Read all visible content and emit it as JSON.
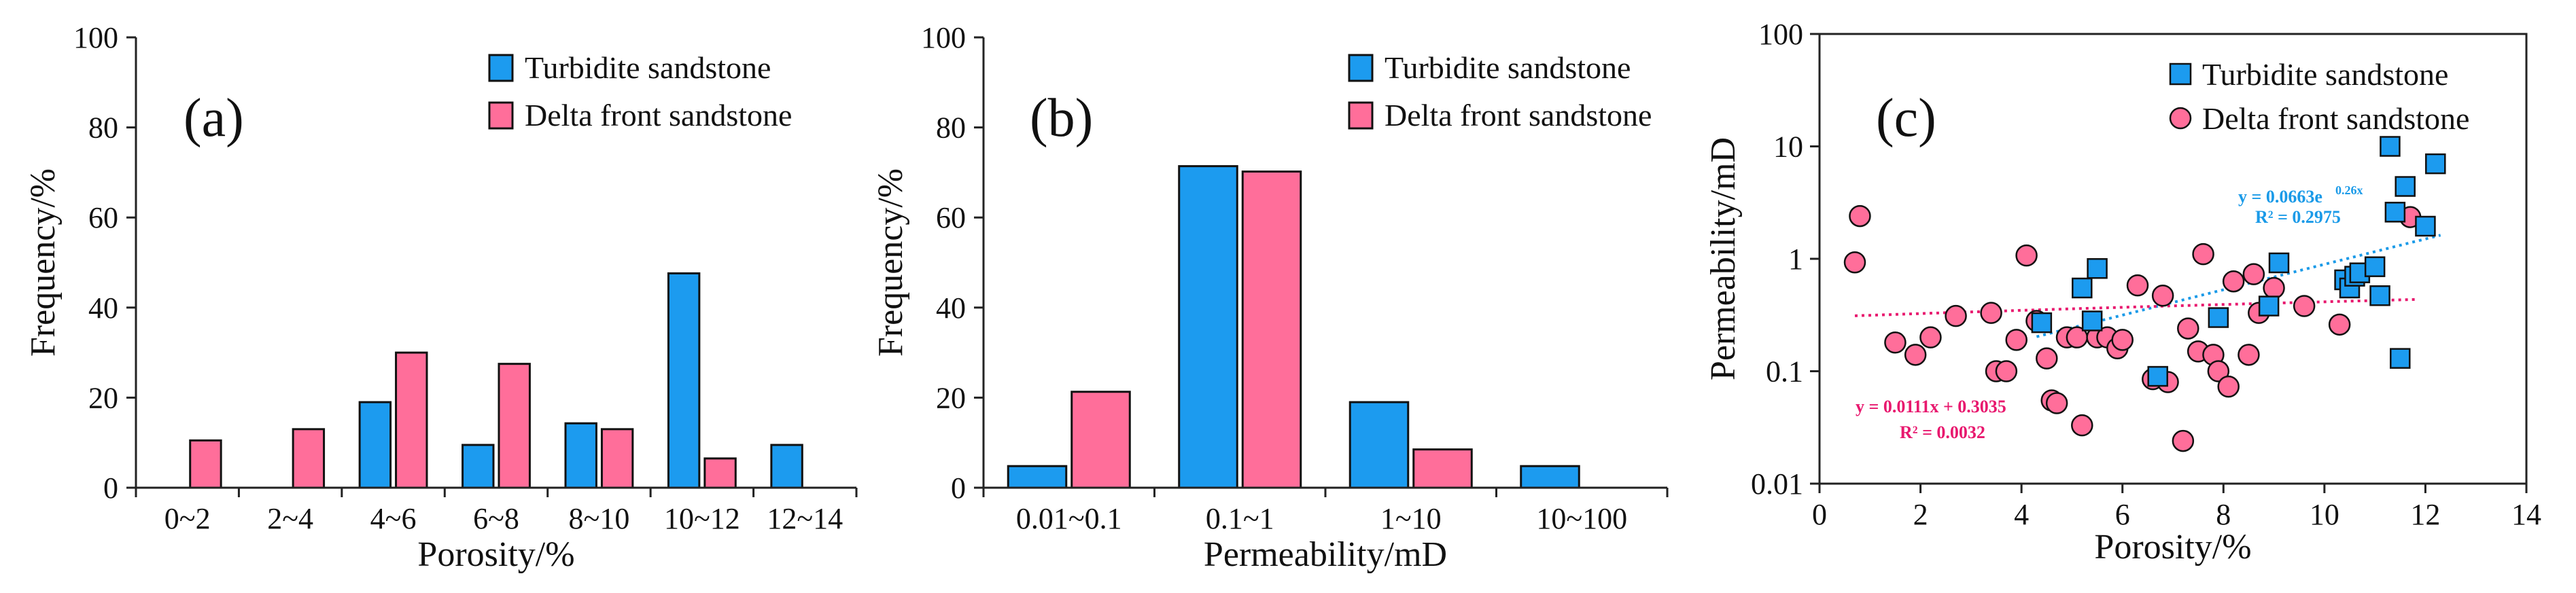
{
  "colors": {
    "turbidite": "#1C9BEF",
    "delta": "#FF6E9A",
    "eq_turbidite": "#1A9AE8",
    "eq_delta": "#E8186E"
  },
  "chart_data": [
    {
      "type": "bar",
      "panel_label": "(a)",
      "xlabel": "Porosity/%",
      "ylabel": "Frequency/%",
      "ylim": [
        0,
        100
      ],
      "yticks": [
        "0",
        "20",
        "40",
        "60",
        "80",
        "100"
      ],
      "categories": [
        "0~2",
        "2~4",
        "4~6",
        "6~8",
        "8~10",
        "10~12",
        "12~14"
      ],
      "series": [
        {
          "name": "Turbidite sandstone",
          "color_key": "turbidite",
          "values": [
            0,
            0,
            19,
            9.5,
            14.3,
            47.6,
            9.5
          ]
        },
        {
          "name": "Delta front sandstone",
          "color_key": "delta",
          "values": [
            10.5,
            13,
            30,
            27.5,
            13,
            6.5,
            0
          ]
        }
      ],
      "legend_position": "top-right"
    },
    {
      "type": "bar",
      "panel_label": "(b)",
      "xlabel": "Permeability/mD",
      "ylabel": "Frequency/%",
      "ylim": [
        0,
        100
      ],
      "yticks": [
        "0",
        "20",
        "40",
        "60",
        "80",
        "100"
      ],
      "categories": [
        "0.01~0.1",
        "0.1~1",
        "1~10",
        "10~100"
      ],
      "series": [
        {
          "name": "Turbidite sandstone",
          "color_key": "turbidite",
          "values": [
            4.8,
            71.4,
            19,
            4.8
          ]
        },
        {
          "name": "Delta front sandstone",
          "color_key": "delta",
          "values": [
            21.3,
            70.2,
            8.5,
            0
          ]
        }
      ],
      "legend_position": "top-right"
    },
    {
      "type": "scatter",
      "panel_label": "(c)",
      "xlabel": "Porosity/%",
      "ylabel": "Permeability/mD",
      "xlim": [
        0,
        14
      ],
      "xticks": [
        "0",
        "2",
        "4",
        "6",
        "8",
        "10",
        "12",
        "14"
      ],
      "ylim": [
        0.01,
        100
      ],
      "yscale": "log",
      "yticks": [
        "0.01",
        "0.1",
        "1",
        "10",
        "100"
      ],
      "series": [
        {
          "name": "Turbidite sandstone",
          "marker": "square",
          "color_key": "turbidite",
          "x": [
            4.4,
            5.2,
            5.4,
            5.5,
            6.7,
            7.9,
            8.9,
            9.1,
            10.4,
            10.5,
            10.6,
            10.7,
            11.0,
            11.1,
            11.3,
            11.4,
            11.5,
            11.6,
            12.0,
            12.2
          ],
          "y": [
            0.27,
            0.55,
            0.28,
            0.82,
            0.09,
            0.3,
            0.38,
            0.92,
            0.65,
            0.55,
            0.7,
            0.75,
            0.85,
            0.47,
            10,
            2.6,
            0.13,
            4.4,
            1.95,
            7
          ]
        },
        {
          "name": "Delta front sandstone",
          "marker": "circle",
          "color_key": "delta",
          "x": [
            0.7,
            0.8,
            1.5,
            1.9,
            2.2,
            2.7,
            3.4,
            3.5,
            3.7,
            3.9,
            4.1,
            4.3,
            4.5,
            4.6,
            4.7,
            4.9,
            5.1,
            5.2,
            5.5,
            5.7,
            5.9,
            6.0,
            6.3,
            6.6,
            6.8,
            6.9,
            7.2,
            7.3,
            7.5,
            7.6,
            7.8,
            7.9,
            8.1,
            8.2,
            8.5,
            8.6,
            8.7,
            9.0,
            9.6,
            10.3,
            11.7
          ],
          "y": [
            0.93,
            2.4,
            0.18,
            0.14,
            0.2,
            0.31,
            0.33,
            0.1,
            0.1,
            0.19,
            1.07,
            0.28,
            0.13,
            0.055,
            0.052,
            0.2,
            0.2,
            0.033,
            0.2,
            0.2,
            0.16,
            0.19,
            0.58,
            0.085,
            0.47,
            0.08,
            0.024,
            0.24,
            0.15,
            1.1,
            0.14,
            0.1,
            0.073,
            0.63,
            0.14,
            0.73,
            0.33,
            0.55,
            0.38,
            0.26,
            2.35
          ]
        }
      ],
      "trendlines": [
        {
          "series": "Turbidite sandstone",
          "kind": "exponential",
          "a": 0.0663,
          "b": 0.26,
          "x_range": [
            4.3,
            12.3
          ],
          "equation_main": "y = 0.0663e",
          "equation_exp": "0.26x",
          "r2_label": "R² = 0.2975",
          "color_key": "eq_turbidite"
        },
        {
          "series": "Delta front sandstone",
          "kind": "linear",
          "slope": 0.0111,
          "intercept": 0.3035,
          "x_range": [
            0.7,
            11.8
          ],
          "equation_label": "y = 0.0111x + 0.3035",
          "r2_label": "R² = 0.0032",
          "color_key": "eq_delta"
        }
      ],
      "legend_position": "top-right"
    }
  ]
}
